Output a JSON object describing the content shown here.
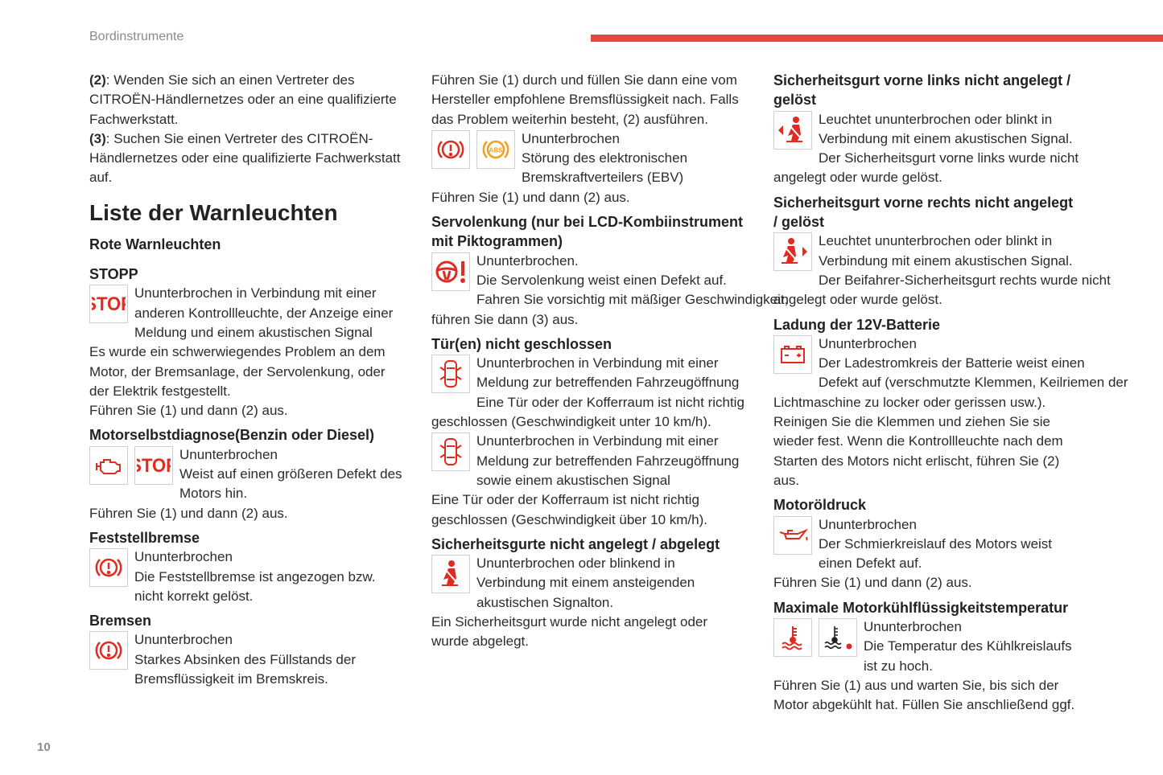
{
  "header": {
    "title": "Bordinstrumente",
    "accent": "#e4483a"
  },
  "page_number": "10",
  "colors": {
    "red": "#e02b20",
    "amber": "#f0a020"
  },
  "columns": [
    {
      "blocks": [
        {
          "k": "pb",
          "bold": "(2)",
          "text": ": Wenden Sie sich an einen Vertreter des"
        },
        {
          "k": "p",
          "text": "CITROËN-Händlernetzes oder an eine qualifizierte"
        },
        {
          "k": "p",
          "text": "Fachwerkstatt."
        },
        {
          "k": "pb",
          "bold": "(3)",
          "text": ": Suchen Sie einen Vertreter des CITROËN-"
        },
        {
          "k": "p",
          "text": "Händlernetzes oder eine qualifizierte Fachwerkstatt"
        },
        {
          "k": "p",
          "text": "auf."
        },
        {
          "k": "h1",
          "text": "Liste der Warnleuchten"
        },
        {
          "k": "h3",
          "cls": "sub",
          "text": "Rote Warnleuchten"
        },
        {
          "k": "h3",
          "cls": "gap",
          "text": "STOPP"
        },
        {
          "k": "icons",
          "icons": [
            "stop-icon"
          ]
        },
        {
          "k": "p",
          "text": "Ununterbrochen in Verbindung mit einer"
        },
        {
          "k": "p",
          "text": "anderen Kontrollleuchte, der Anzeige einer"
        },
        {
          "k": "p",
          "text": "Meldung und einem akustischen Signal"
        },
        {
          "k": "p",
          "text": "Es wurde ein schwerwiegendes Problem an dem"
        },
        {
          "k": "p",
          "text": "Motor, der Bremsanlage, der Servolenkung, oder"
        },
        {
          "k": "p",
          "text": "der Elektrik festgestellt."
        },
        {
          "k": "p",
          "text": "Führen Sie (1) und dann (2) aus."
        },
        {
          "k": "h3",
          "text": "Motorselbstdiagnose(Benzin oder Diesel)"
        },
        {
          "k": "icons",
          "icons": [
            "engine-icon",
            "stop-icon"
          ]
        },
        {
          "k": "p",
          "text": "Ununterbrochen"
        },
        {
          "k": "p",
          "text": "Weist auf einen größeren Defekt des"
        },
        {
          "k": "p",
          "text": "Motors hin."
        },
        {
          "k": "p",
          "text": "Führen Sie (1) und dann (2) aus."
        },
        {
          "k": "h3",
          "text": "Feststellbremse"
        },
        {
          "k": "icons",
          "icons": [
            "brake-icon"
          ]
        },
        {
          "k": "p",
          "text": "Ununterbrochen"
        },
        {
          "k": "p",
          "text": "Die Feststellbremse ist angezogen bzw."
        },
        {
          "k": "p",
          "text": "nicht korrekt gelöst."
        },
        {
          "k": "h3",
          "text": "Bremsen"
        },
        {
          "k": "icons",
          "icons": [
            "brake-icon"
          ]
        },
        {
          "k": "p",
          "text": "Ununterbrochen"
        },
        {
          "k": "p",
          "text": "Starkes Absinken des Füllstands der"
        },
        {
          "k": "p",
          "text": "Bremsflüssigkeit im Bremskreis."
        }
      ]
    },
    {
      "blocks": [
        {
          "k": "p",
          "text": "Führen Sie (1) durch und füllen Sie dann eine vom"
        },
        {
          "k": "p",
          "text": "Hersteller empfohlene Bremsflüssigkeit nach. Falls"
        },
        {
          "k": "p",
          "text": "das Problem weiterhin besteht, (2) ausführen."
        },
        {
          "k": "icons",
          "icons": [
            "brake-icon",
            "abs-icon"
          ]
        },
        {
          "k": "p",
          "text": "Ununterbrochen"
        },
        {
          "k": "p",
          "text": "Störung des elektronischen"
        },
        {
          "k": "p",
          "text": "Bremskraftverteilers (EBV)"
        },
        {
          "k": "p",
          "text": "Führen Sie (1) und dann (2) aus."
        },
        {
          "k": "h3",
          "text": "Servolenkung (nur bei LCD-Kombiinstrument"
        },
        {
          "k": "h3",
          "cls": "cont",
          "text": "mit Piktogrammen)"
        },
        {
          "k": "icons",
          "icons": [
            "steering-warning-icon"
          ]
        },
        {
          "k": "p",
          "text": "Ununterbrochen."
        },
        {
          "k": "p",
          "text": "Die Servolenkung weist einen Defekt auf."
        },
        {
          "k": "p",
          "text": "Fahren Sie vorsichtig mit mäßiger Geschwindigkeit,"
        },
        {
          "k": "p",
          "text": "führen Sie dann (3) aus."
        },
        {
          "k": "h3",
          "text": "Tür(en) nicht geschlossen"
        },
        {
          "k": "icons",
          "icons": [
            "door-open-icon"
          ]
        },
        {
          "k": "p",
          "text": "Ununterbrochen in Verbindung mit einer"
        },
        {
          "k": "p",
          "text": "Meldung zur betreffenden Fahrzeugöffnung"
        },
        {
          "k": "p",
          "text": "Eine Tür oder der Kofferraum ist nicht richtig"
        },
        {
          "k": "p",
          "text": "geschlossen (Geschwindigkeit unter 10 km/h)."
        },
        {
          "k": "icons",
          "icons": [
            "door-open-icon"
          ]
        },
        {
          "k": "p",
          "text": "Ununterbrochen in Verbindung mit einer"
        },
        {
          "k": "p",
          "text": "Meldung zur betreffenden Fahrzeugöffnung"
        },
        {
          "k": "p",
          "text": "sowie einem akustischen Signal"
        },
        {
          "k": "p",
          "text": "Eine Tür oder der Kofferraum ist nicht richtig"
        },
        {
          "k": "p",
          "text": "geschlossen (Geschwindigkeit über 10 km/h)."
        },
        {
          "k": "h3",
          "text": "Sicherheitsgurte nicht angelegt / abgelegt"
        },
        {
          "k": "icons",
          "icons": [
            "seatbelt-icon"
          ]
        },
        {
          "k": "p",
          "text": "Ununterbrochen oder blinkend in"
        },
        {
          "k": "p",
          "text": "Verbindung mit einem ansteigenden"
        },
        {
          "k": "p",
          "text": "akustischen Signalton."
        },
        {
          "k": "p",
          "text": "Ein Sicherheitsgurt wurde nicht angelegt oder"
        },
        {
          "k": "p",
          "text": "wurde abgelegt."
        }
      ]
    },
    {
      "blocks": [
        {
          "k": "h3",
          "cls": "first",
          "text": "Sicherheitsgurt vorne links nicht angelegt /"
        },
        {
          "k": "h3",
          "cls": "cont",
          "text": "gelöst"
        },
        {
          "k": "icons",
          "icons": [
            "seatbelt-left-icon"
          ]
        },
        {
          "k": "p",
          "text": "Leuchtet ununterbrochen oder blinkt in"
        },
        {
          "k": "p",
          "text": "Verbindung mit einem akustischen Signal."
        },
        {
          "k": "p",
          "text": "Der Sicherheitsgurt vorne links wurde nicht"
        },
        {
          "k": "p",
          "text": "angelegt oder wurde gelöst."
        },
        {
          "k": "h3",
          "text": "Sicherheitsgurt vorne rechts nicht angelegt"
        },
        {
          "k": "h3",
          "cls": "cont",
          "text": "/ gelöst"
        },
        {
          "k": "icons",
          "icons": [
            "seatbelt-right-icon"
          ]
        },
        {
          "k": "p",
          "text": "Leuchtet ununterbrochen oder blinkt in"
        },
        {
          "k": "p",
          "text": "Verbindung mit einem akustischen Signal."
        },
        {
          "k": "p",
          "text": "Der Beifahrer-Sicherheitsgurt rechts wurde nicht"
        },
        {
          "k": "p",
          "text": "angelegt oder wurde gelöst."
        },
        {
          "k": "h3",
          "text": "Ladung der 12V-Batterie"
        },
        {
          "k": "icons",
          "icons": [
            "battery-icon"
          ]
        },
        {
          "k": "p",
          "text": "Ununterbrochen"
        },
        {
          "k": "p",
          "text": "Der Ladestromkreis der Batterie weist einen"
        },
        {
          "k": "p",
          "text": "Defekt auf (verschmutzte Klemmen, Keilriemen der"
        },
        {
          "k": "p",
          "text": "Lichtmaschine zu locker oder gerissen usw.)."
        },
        {
          "k": "p",
          "text": "Reinigen Sie die Klemmen und ziehen Sie sie"
        },
        {
          "k": "p",
          "text": "wieder fest. Wenn die Kontrollleuchte nach dem"
        },
        {
          "k": "p",
          "text": "Starten des Motors nicht erlischt, führen Sie (2)"
        },
        {
          "k": "p",
          "text": "aus."
        },
        {
          "k": "h3",
          "text": "Motoröldruck"
        },
        {
          "k": "icons",
          "icons": [
            "oil-pressure-icon"
          ]
        },
        {
          "k": "p",
          "text": "Ununterbrochen"
        },
        {
          "k": "p",
          "text": "Der Schmierkreislauf des Motors weist"
        },
        {
          "k": "p",
          "text": "einen Defekt auf."
        },
        {
          "k": "p",
          "text": "Führen Sie (1) und dann (2) aus."
        },
        {
          "k": "h3",
          "text": "Maximale Motorkühlflüssigkeitstemperatur"
        },
        {
          "k": "icons",
          "icons": [
            "coolant-temperature-icon",
            "coolant-temperature-alert-icon"
          ]
        },
        {
          "k": "p",
          "text": "Ununterbrochen"
        },
        {
          "k": "p",
          "text": "Die Temperatur des Kühlkreislaufs"
        },
        {
          "k": "p",
          "text": "ist zu hoch."
        },
        {
          "k": "p",
          "text": "Führen Sie (1) aus und warten Sie, bis sich der"
        },
        {
          "k": "p",
          "text": "Motor abgekühlt hat. Füllen Sie anschließend ggf."
        }
      ]
    }
  ]
}
